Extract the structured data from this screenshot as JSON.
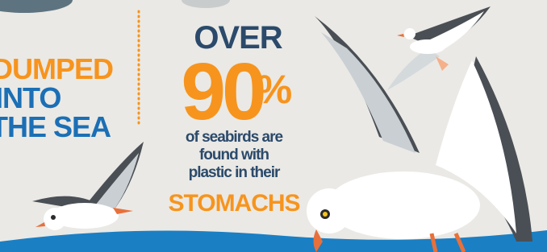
{
  "left_block": {
    "lines": [
      "DUMPED",
      "INTO",
      "THE SEA"
    ]
  },
  "stat": {
    "prefix": "OVER",
    "number": "90",
    "unit": "%",
    "caption": [
      "of seabirds are",
      "found with",
      "plastic in their"
    ],
    "emphasis": "STOMACHS"
  }
}
